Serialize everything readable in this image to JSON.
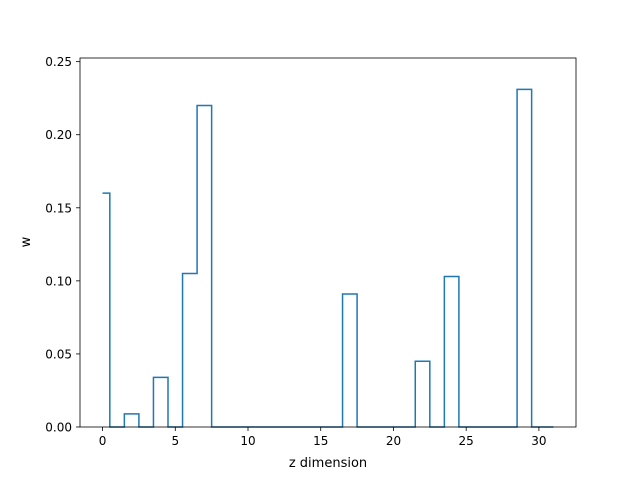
{
  "chart_data": {
    "type": "line",
    "title": "",
    "xlabel": "z dimension",
    "ylabel": "w",
    "xlim": [
      -1.55,
      32.55
    ],
    "ylim": [
      0,
      0.2525
    ],
    "grid": false,
    "line_color": "#1f77b4",
    "step_style": "steps-mid",
    "x_ticks": [
      0,
      5,
      10,
      15,
      20,
      25,
      30
    ],
    "x_tick_labels": [
      "0",
      "5",
      "10",
      "15",
      "20",
      "25",
      "30"
    ],
    "y_ticks": [
      0,
      0.05,
      0.1,
      0.15,
      0.2,
      0.25
    ],
    "y_tick_labels": [
      "0.00",
      "0.05",
      "0.10",
      "0.15",
      "0.20",
      "0.25"
    ],
    "series": [
      {
        "x": [
          0,
          1,
          2,
          3,
          4,
          5,
          6,
          7,
          8,
          9,
          10,
          11,
          12,
          13,
          14,
          15,
          16,
          17,
          18,
          19,
          20,
          21,
          22,
          23,
          24,
          25,
          26,
          27,
          28,
          29,
          30,
          31
        ],
        "values": [
          0.16,
          0,
          0.009,
          0,
          0.034,
          0,
          0.105,
          0.22,
          0,
          0,
          0,
          0,
          0,
          0,
          0,
          0,
          0,
          0.091,
          0,
          0,
          0,
          0,
          0.045,
          0,
          0.103,
          0,
          0,
          0,
          0,
          0.231,
          0,
          0
        ]
      }
    ]
  }
}
